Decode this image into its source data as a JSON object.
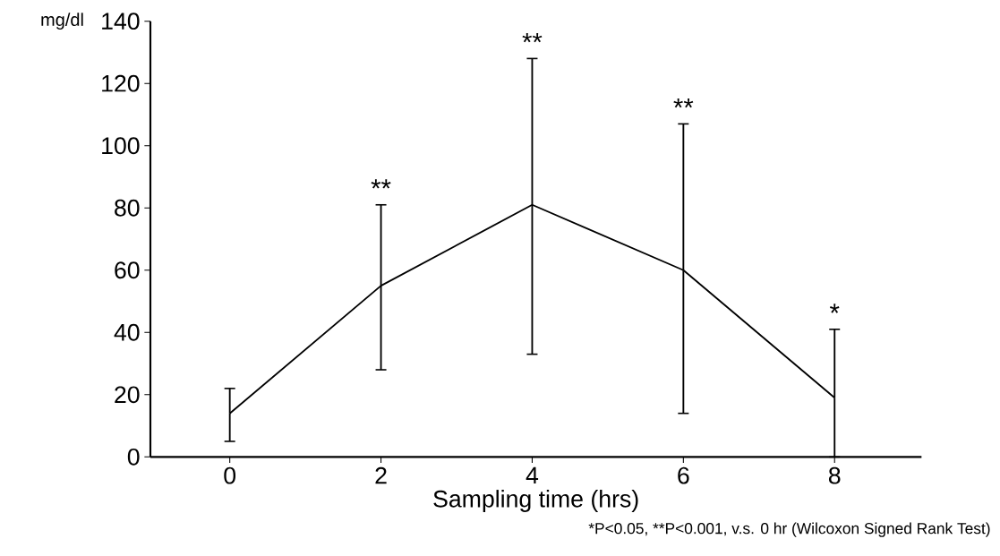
{
  "chart_data": {
    "type": "line",
    "xlabel": "Sampling time (hrs)",
    "ylabel": "mg/dl",
    "x": [
      0,
      2,
      4,
      6,
      8
    ],
    "series": [
      {
        "color": "#000000",
        "values": [
          14,
          55,
          81,
          60,
          19
        ],
        "errors": [
          [
            5,
            22
          ],
          [
            28,
            81
          ],
          [
            33,
            128
          ],
          [
            14,
            107
          ],
          [
            0,
            41
          ]
        ]
      }
    ],
    "xlim": [
      -1.05,
      9.15
    ],
    "ylim": [
      0,
      140
    ],
    "xticks": [
      0,
      2,
      4,
      6,
      8
    ],
    "yticks": [
      0,
      20,
      40,
      60,
      80,
      100,
      120,
      140
    ],
    "grid": false,
    "line_style": "solid",
    "annotations": [
      {
        "text": "**",
        "x": 2,
        "y": 81
      },
      {
        "text": "**",
        "x": 4,
        "y": 128
      },
      {
        "text": "**",
        "x": 6,
        "y": 107
      },
      {
        "text": "*",
        "x": 8,
        "y": 41
      },
      "*P<0.05, **P<0.001, v.s. 0 hr (Wilcoxon Signed Rank Test)"
    ]
  }
}
